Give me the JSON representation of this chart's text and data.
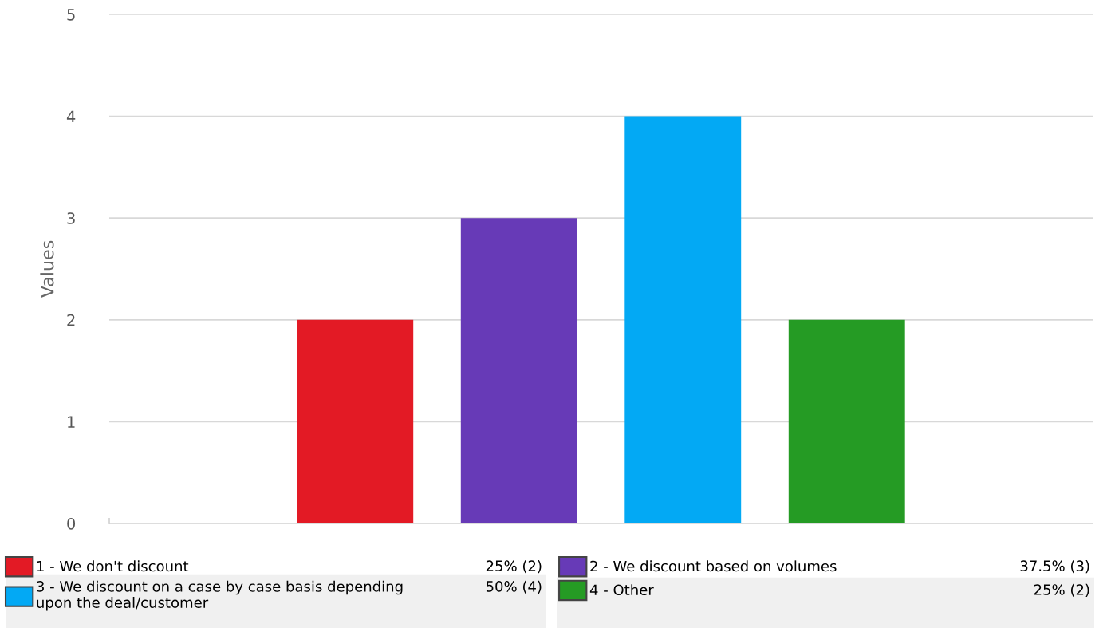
{
  "chart_data": {
    "type": "bar",
    "ylabel": "Values",
    "categories": [
      null,
      null,
      null,
      null,
      null,
      null
    ],
    "series": [
      {
        "name": "1 - We don't discount",
        "color": "#e31a25",
        "values": [
          null,
          2,
          null,
          null,
          null,
          null
        ]
      },
      {
        "name": "2 - We discount based on volumes",
        "color": "#673ab7",
        "values": [
          null,
          null,
          3,
          null,
          null,
          null
        ]
      },
      {
        "name": "3 - We discount on a case by case basis depending upon the deal/customer",
        "color": "#03a9f4",
        "values": [
          null,
          null,
          null,
          4,
          null,
          null
        ]
      },
      {
        "name": "4 - Other",
        "color": "#259b24",
        "values": [
          null,
          null,
          null,
          null,
          2,
          null
        ]
      }
    ],
    "stacked": true,
    "annotations": [
      "25% (2)",
      "37.5% (3)",
      "50% (4)",
      "25% (2)"
    ],
    "ylim": [
      0,
      5
    ],
    "yticks": [
      0,
      1,
      2,
      3,
      4,
      5
    ],
    "grid": "y",
    "legend": "bottom"
  }
}
